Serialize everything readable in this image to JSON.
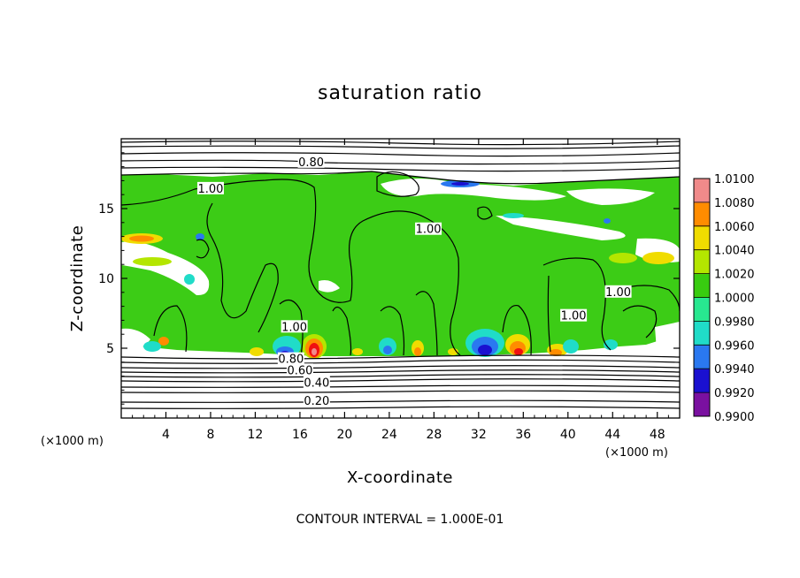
{
  "chart_data": {
    "type": "heatmap",
    "title": "saturation ratio",
    "xlabel": "X-coordinate",
    "ylabel": "Z-coordinate",
    "x_unit": "(×1000 m)",
    "z_unit": "(×1000 m)",
    "xlim": [
      0,
      50
    ],
    "ylim": [
      0,
      20
    ],
    "x_ticks": [
      4,
      8,
      12,
      16,
      20,
      24,
      28,
      32,
      36,
      40,
      44,
      48
    ],
    "y_ticks": [
      5,
      10,
      15
    ],
    "colorbar": {
      "levels": [
        0.99,
        0.992,
        0.994,
        0.996,
        0.998,
        1.0,
        1.002,
        1.004,
        1.006,
        1.008,
        1.01
      ],
      "labels": [
        "0.9900",
        "0.9920",
        "0.9940",
        "0.9960",
        "0.9980",
        "1.0000",
        "1.0020",
        "1.0040",
        "1.0060",
        "1.0080",
        "1.0100"
      ],
      "colors": [
        "#7a10a0",
        "#1a10d0",
        "#2a78f0",
        "#20dcc8",
        "#28e890",
        "#38cc10",
        "#b4e600",
        "#f0dc00",
        "#ff8c00",
        "#f01010",
        "#f08a8a"
      ]
    },
    "contour_labels": [
      {
        "text": "0.80",
        "x": 17.0,
        "z": 18.3
      },
      {
        "text": "1.00",
        "x": 8.0,
        "z": 16.4
      },
      {
        "text": "1.00",
        "x": 27.5,
        "z": 13.5
      },
      {
        "text": "1.00",
        "x": 44.5,
        "z": 9.0
      },
      {
        "text": "1.00",
        "x": 40.5,
        "z": 7.3
      },
      {
        "text": "1.00",
        "x": 15.5,
        "z": 6.5
      },
      {
        "text": "0.80",
        "x": 15.2,
        "z": 4.2
      },
      {
        "text": "0.60",
        "x": 16.0,
        "z": 3.4
      },
      {
        "text": "0.40",
        "x": 17.5,
        "z": 2.5
      },
      {
        "text": "0.20",
        "x": 17.5,
        "z": 1.2
      }
    ],
    "footnote": "CONTOUR INTERVAL = 1.000E-01"
  }
}
